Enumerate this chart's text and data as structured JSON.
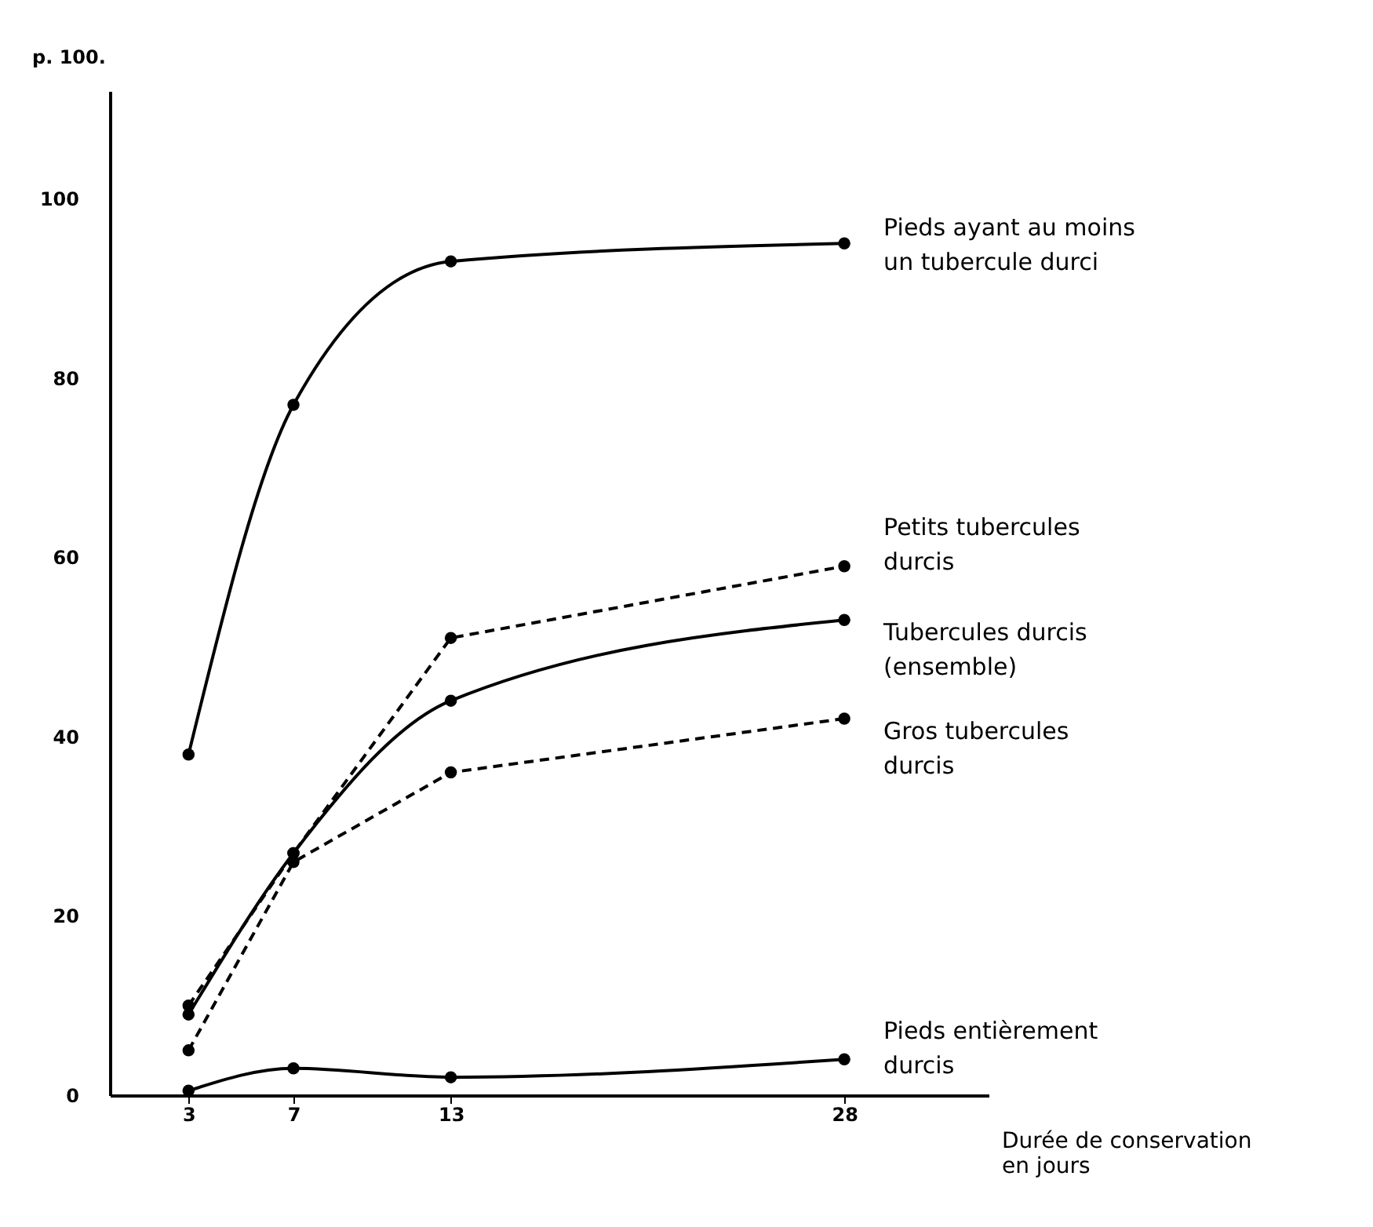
{
  "chart_data": {
    "type": "line",
    "ylabel": "p. 100.",
    "xlabel": "Durée de conservation\nen jours",
    "xlim": [
      0,
      33.5
    ],
    "xticks": [
      3,
      7,
      13,
      28
    ],
    "ylim": [
      0,
      112
    ],
    "yticks": [
      0,
      20,
      40,
      60,
      80,
      100
    ],
    "x": [
      3,
      7,
      13,
      28
    ],
    "grid": false,
    "legend": false,
    "marker": "circle",
    "series": [
      {
        "name": "Pieds ayant au moins\nun tubercule durci",
        "color": "#000000",
        "line_style": "solid",
        "values": [
          38,
          77,
          93,
          95
        ]
      },
      {
        "name": "Petits tubercules\ndurcis",
        "color": "#000000",
        "line_style": "dashed",
        "values": [
          10,
          27,
          51,
          59
        ]
      },
      {
        "name": "Tubercules durcis\n(ensemble)",
        "color": "#000000",
        "line_style": "solid",
        "values": [
          9,
          27,
          44,
          53
        ]
      },
      {
        "name": "Gros tubercules\ndurcis",
        "color": "#000000",
        "line_style": "dashed",
        "values": [
          5,
          26,
          36,
          42
        ]
      },
      {
        "name": "Pieds entièrement\ndurcis",
        "color": "#000000",
        "line_style": "solid",
        "values": [
          0.5,
          3,
          2,
          4
        ]
      }
    ]
  }
}
